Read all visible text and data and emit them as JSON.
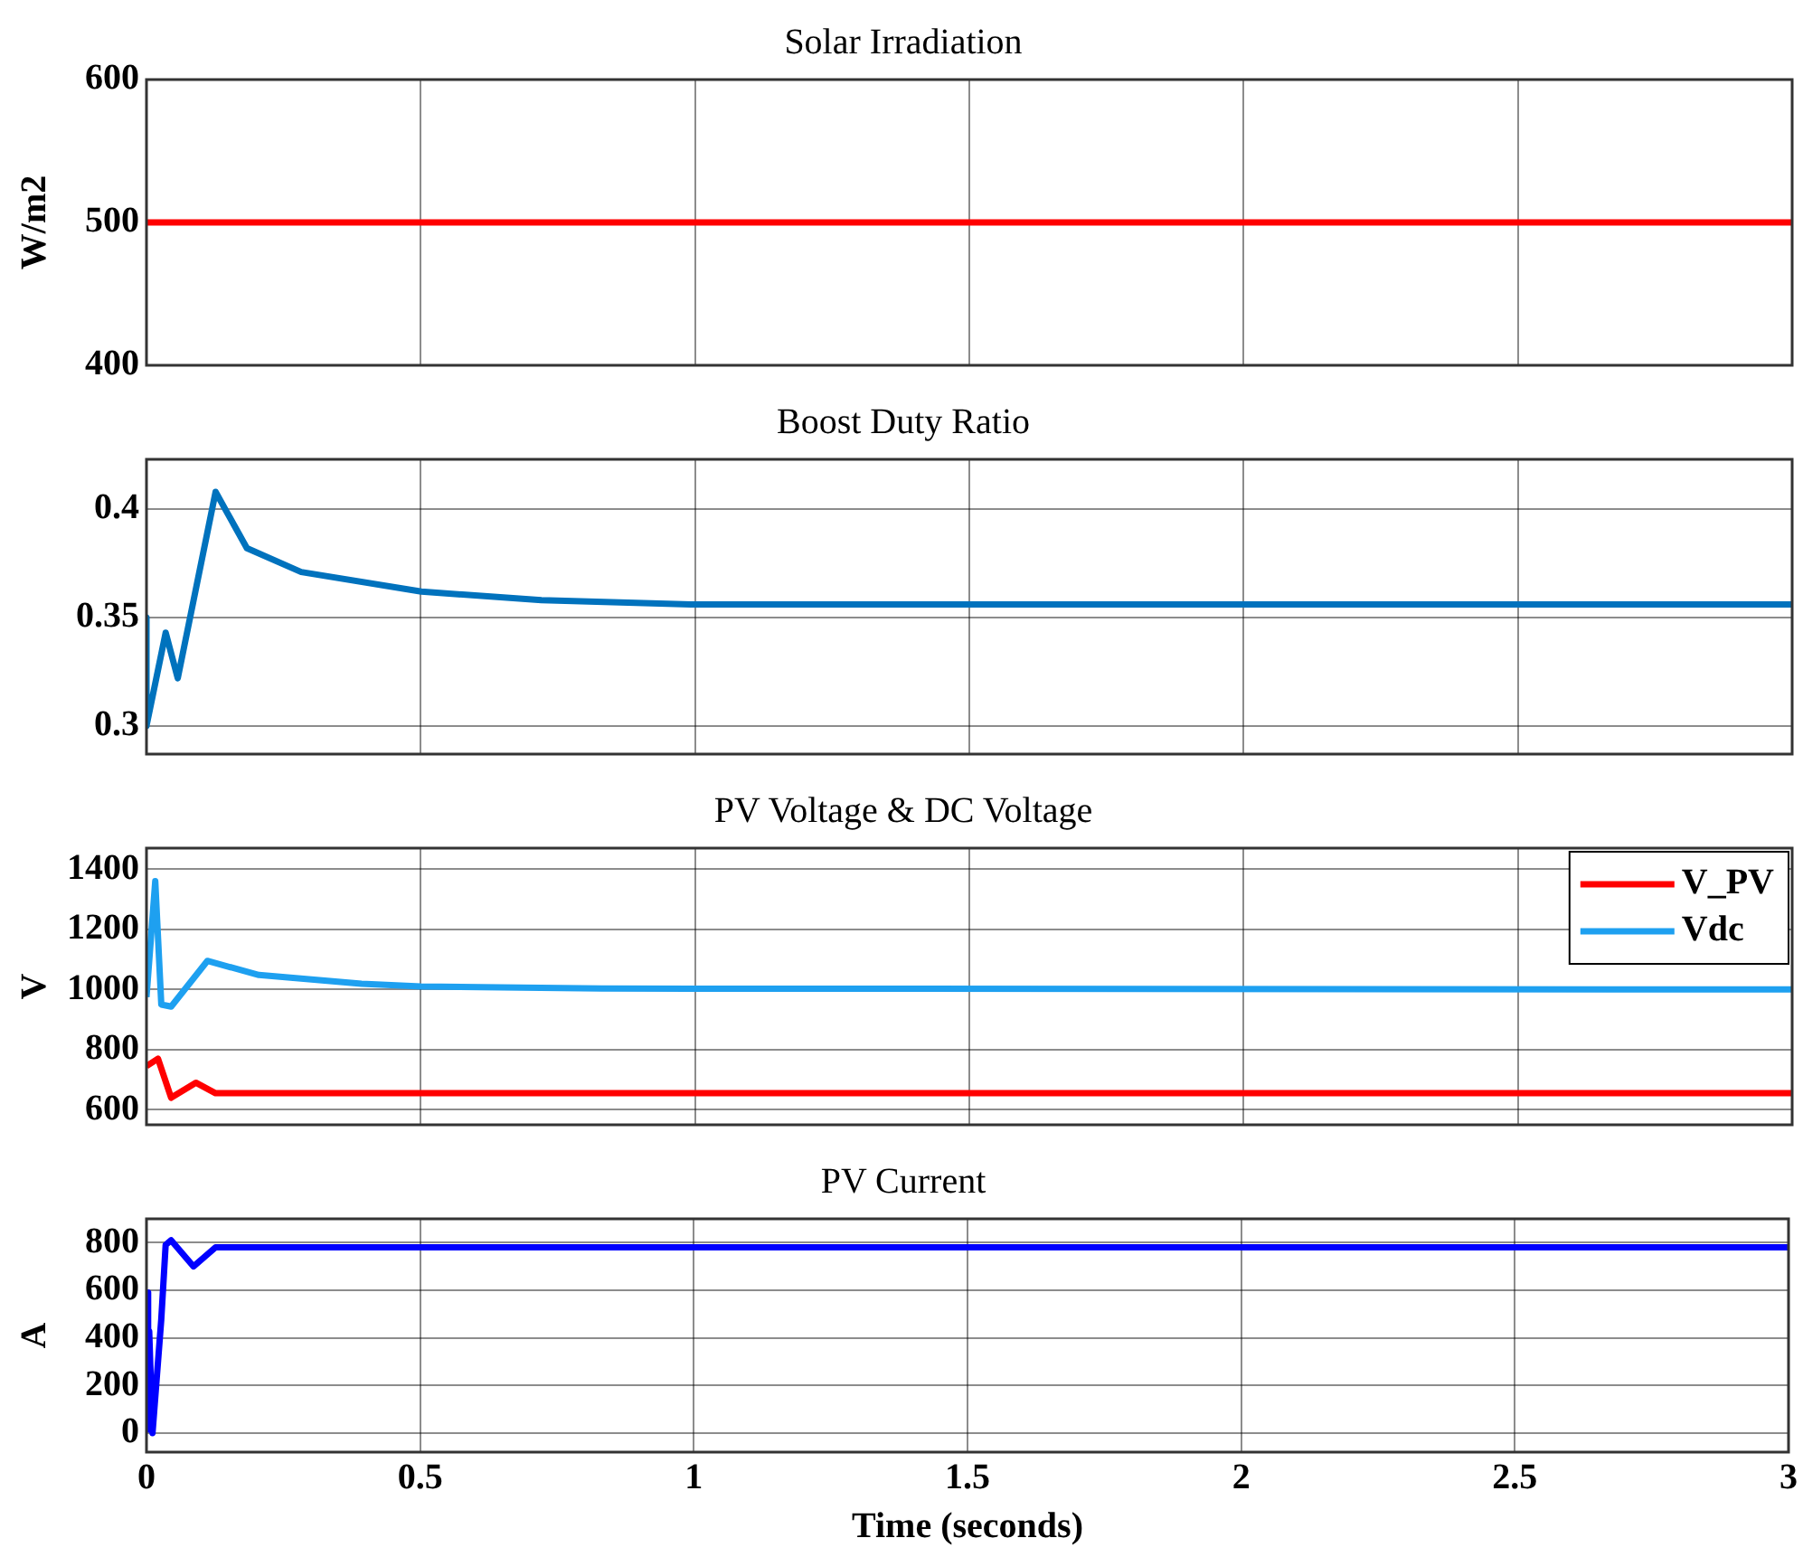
{
  "chart_data": [
    {
      "type": "line",
      "title": "Solar Irradiation",
      "ylabel": "W/m2",
      "xlim": [
        0,
        3
      ],
      "xticks": [
        0,
        0.5,
        1,
        1.5,
        2,
        2.5,
        3
      ],
      "ylim": [
        400,
        600
      ],
      "yticks": [
        400,
        500,
        600
      ],
      "grid": true,
      "tick_labels": "y",
      "series": [
        {
          "color": "#ff0000",
          "x": [
            0,
            3
          ],
          "values": [
            500,
            500
          ]
        }
      ]
    },
    {
      "type": "line",
      "title": "Boost Duty Ratio",
      "xlim": [
        0,
        3
      ],
      "xticks": [
        0,
        0.5,
        1,
        1.5,
        2,
        2.5,
        3
      ],
      "ylim": [
        0.287,
        0.423
      ],
      "yticks": [
        0.3,
        0.35,
        0.4
      ],
      "grid": true,
      "tick_labels": "y",
      "series": [
        {
          "color": "#0072bd",
          "x": [
            0,
            0,
            0.035,
            0.057,
            0.126,
            0.183,
            0.282,
            0.501,
            0.72,
            1,
            3
          ],
          "values": [
            0.35,
            0.3,
            0.343,
            0.322,
            0.408,
            0.382,
            0.371,
            0.362,
            0.358,
            0.356,
            0.356
          ]
        }
      ]
    },
    {
      "type": "line",
      "title": "PV Voltage & DC Voltage",
      "ylabel": "V",
      "xlim": [
        0,
        3
      ],
      "xticks": [
        0,
        0.5,
        1,
        1.5,
        2,
        2.5,
        3
      ],
      "ylim": [
        550,
        1470
      ],
      "yticks": [
        600,
        800,
        1000,
        1200,
        1400
      ],
      "grid": true,
      "tick_labels": "y",
      "legend": "top right",
      "series": [
        {
          "name": "V_PV",
          "color": "#ff0000",
          "x": [
            0,
            0.021,
            0.045,
            0.09,
            0.126,
            3
          ],
          "values": [
            745,
            770,
            640,
            690,
            655,
            655
          ]
        },
        {
          "name": "Vdc",
          "color": "#1ea0f0",
          "x": [
            0,
            0.016,
            0.027,
            0.045,
            0.111,
            0.205,
            0.392,
            0.5,
            0.83,
            3
          ],
          "values": [
            975,
            1360,
            950,
            943,
            1095,
            1048,
            1019,
            1010,
            1003,
            1000
          ]
        }
      ]
    },
    {
      "type": "line",
      "title": "PV Current",
      "xlabel": "Time (seconds)",
      "ylabel": "A",
      "xlim": [
        0,
        3
      ],
      "xticks": [
        0,
        0.5,
        1,
        1.5,
        2,
        2.5,
        3
      ],
      "ylim": [
        -80,
        900
      ],
      "yticks": [
        0,
        200,
        400,
        600,
        800
      ],
      "grid": true,
      "series": [
        {
          "color": "#0000ff",
          "x": [
            0,
            0.003,
            0.005,
            0.011,
            0.027,
            0.035,
            0.045,
            0.086,
            0.126,
            3
          ],
          "values": [
            590,
            15,
            427,
            0,
            477,
            790,
            810,
            700,
            780,
            780
          ]
        }
      ]
    }
  ]
}
